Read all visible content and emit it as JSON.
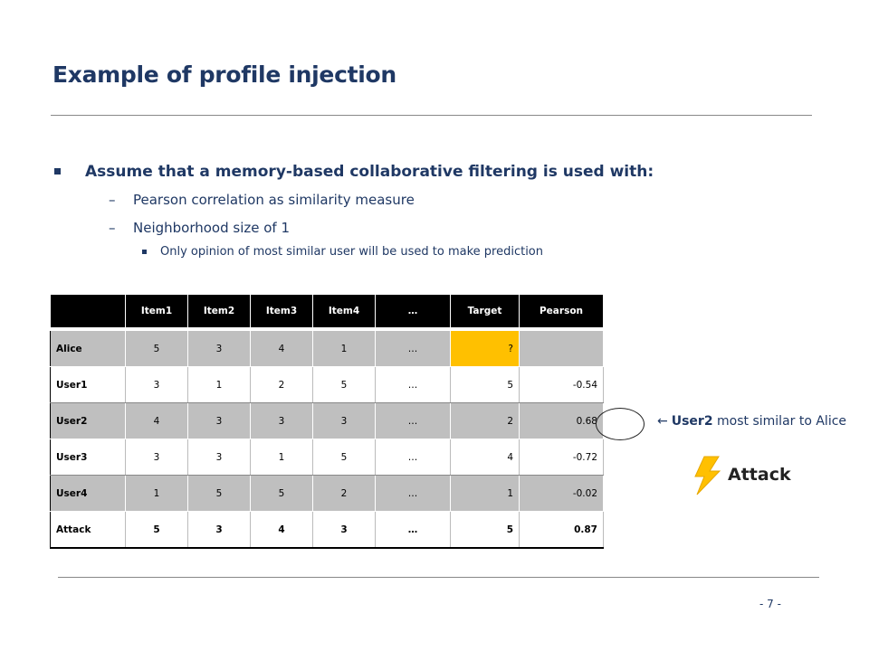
{
  "slide": {
    "title": "Example of profile injection",
    "bullet1": "Assume that a memory-based collaborative filtering is used with:",
    "sub1": "Pearson correlation as similarity measure",
    "sub2": "Neighborhood size of 1",
    "sub2_detail": "Only opinion of most similar user will be used to make prediction",
    "dash": "–",
    "page_number": "- 7 -"
  },
  "table": {
    "headers": [
      "",
      "Item1",
      "Item2",
      "Item3",
      "Item4",
      "…",
      "Target",
      "Pearson"
    ],
    "rows": [
      {
        "label": "Alice",
        "cells": [
          "5",
          "3",
          "4",
          "1",
          "…",
          "?",
          ""
        ]
      },
      {
        "label": "User1",
        "cells": [
          "3",
          "1",
          "2",
          "5",
          "…",
          "5",
          "-0.54"
        ]
      },
      {
        "label": "User2",
        "cells": [
          "4",
          "3",
          "3",
          "3",
          "…",
          "2",
          "0.68"
        ]
      },
      {
        "label": "User3",
        "cells": [
          "3",
          "3",
          "1",
          "5",
          "…",
          "4",
          "-0.72"
        ]
      },
      {
        "label": "User4",
        "cells": [
          "1",
          "5",
          "5",
          "2",
          "…",
          "1",
          "-0.02"
        ]
      },
      {
        "label": "Attack",
        "cells": [
          "5",
          "3",
          "4",
          "3",
          "…",
          "5",
          "0.87"
        ]
      }
    ]
  },
  "annotation": {
    "arrow": "←",
    "user": "User2",
    "text": " most similar to Alice",
    "attack_label": "Attack"
  },
  "colors": {
    "title": "#1f3864",
    "highlight": "#ffc000",
    "row_gray": "#bfbfbf",
    "bolt": "#ffc000"
  },
  "icons": [
    "lightning-bolt-icon"
  ]
}
